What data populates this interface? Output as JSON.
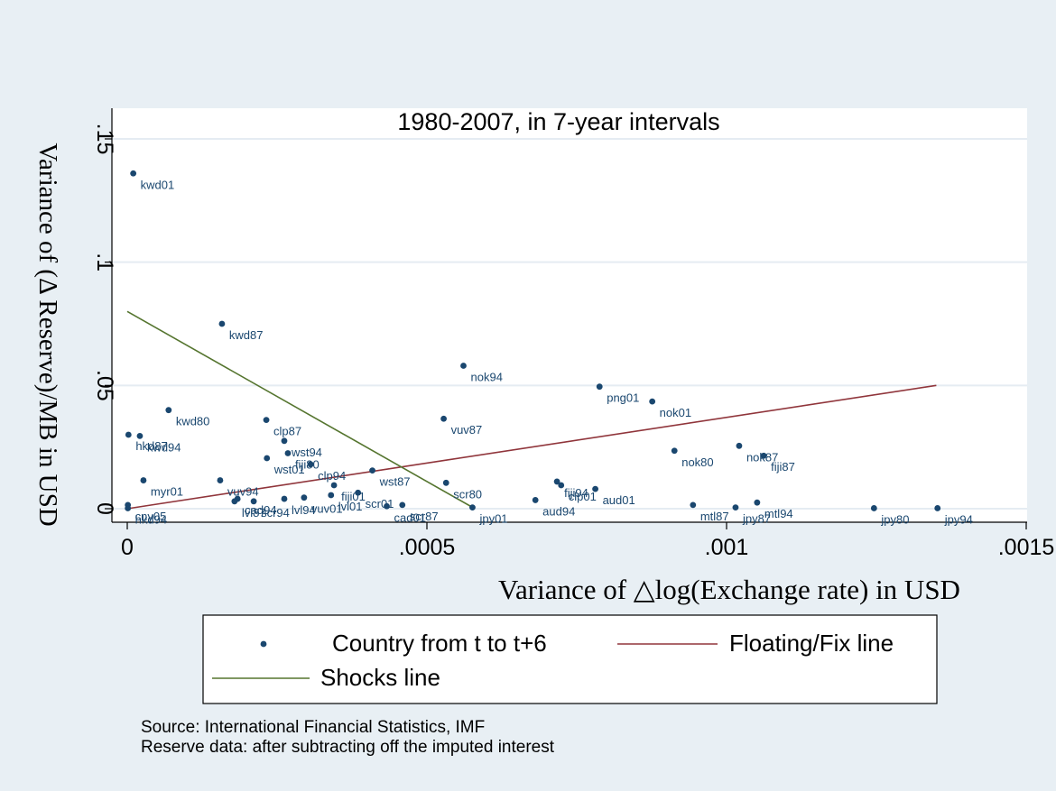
{
  "chart_data": {
    "type": "scatter",
    "title": "1980-2007, in 7-year intervals",
    "xlabel": "Variance of △log(Exchange rate) in USD",
    "ylabel": "Variance of (Δ Reserve)/MB in USD",
    "xlim": [
      0,
      0.0015
    ],
    "ylim": [
      0,
      0.15
    ],
    "xticks": [
      {
        "value": 0,
        "label": "0"
      },
      {
        "value": 0.0005,
        "label": ".0005"
      },
      {
        "value": 0.001,
        "label": ".001"
      },
      {
        "value": 0.0015,
        "label": ".0015"
      }
    ],
    "yticks": [
      {
        "value": 0,
        "label": "0"
      },
      {
        "value": 0.05,
        "label": ".05"
      },
      {
        "value": 0.1,
        "label": ".1"
      },
      {
        "value": 0.15,
        "label": ".15"
      }
    ],
    "grid": true,
    "legend_position": "bottom",
    "colors": {
      "background": "#e8eff4",
      "plot": "#ffffff",
      "grid": "#e5ecf2",
      "points": "#1a476f",
      "floating_fix_line": "#90353b",
      "shocks_line": "#55752f"
    },
    "series": [
      {
        "name": "Country from t to t+6",
        "kind": "points",
        "points": [
          {
            "x": 1e-05,
            "y": 0.136,
            "label": "kwd01"
          },
          {
            "x": 0.000158,
            "y": 0.075,
            "label": "kwd87"
          },
          {
            "x": 0.000561,
            "y": 0.058,
            "label": "nok94"
          },
          {
            "x": 0.000788,
            "y": 0.0495,
            "label": "png01"
          },
          {
            "x": 0.000876,
            "y": 0.0435,
            "label": "nok01"
          },
          {
            "x": 6.9e-05,
            "y": 0.04,
            "label": "kwd80"
          },
          {
            "x": 0.000528,
            "y": 0.0365,
            "label": "vuv87"
          },
          {
            "x": 0.000232,
            "y": 0.036,
            "label": "clp87"
          },
          {
            "x": 2e-06,
            "y": 0.03,
            "label": "hkd87"
          },
          {
            "x": 2.1e-05,
            "y": 0.0295,
            "label": "kwd94"
          },
          {
            "x": 0.000262,
            "y": 0.0275,
            "label": "wst94"
          },
          {
            "x": 0.001021,
            "y": 0.0255,
            "label": "nok87"
          },
          {
            "x": 0.000913,
            "y": 0.0235,
            "label": "nok80"
          },
          {
            "x": 0.000268,
            "y": 0.0225,
            "label": "fiji80"
          },
          {
            "x": 0.001062,
            "y": 0.0215,
            "label": "fiji87"
          },
          {
            "x": 0.000233,
            "y": 0.0205,
            "label": "wst01"
          },
          {
            "x": 0.000306,
            "y": 0.018,
            "label": "clp94"
          },
          {
            "x": 0.000409,
            "y": 0.0155,
            "label": "wst87"
          },
          {
            "x": 2.7e-05,
            "y": 0.0115,
            "label": "myr01"
          },
          {
            "x": 0.000155,
            "y": 0.0115,
            "label": "vuv94"
          },
          {
            "x": 0.000717,
            "y": 0.011,
            "label": "fiji94"
          },
          {
            "x": 0.000532,
            "y": 0.0105,
            "label": "scr80"
          },
          {
            "x": 0.000345,
            "y": 0.0095,
            "label": "fiji01"
          },
          {
            "x": 0.000724,
            "y": 0.0095,
            "label": "clp01"
          },
          {
            "x": 0.000781,
            "y": 0.008,
            "label": "aud01"
          },
          {
            "x": 0.000385,
            "y": 0.0065,
            "label": "scr01"
          },
          {
            "x": 0.00034,
            "y": 0.0055,
            "label": "lvl01"
          },
          {
            "x": 0.000184,
            "y": 0.004,
            "label": "cad94"
          },
          {
            "x": 0.000295,
            "y": 0.0045,
            "label": "vuv01"
          },
          {
            "x": 0.000262,
            "y": 0.004,
            "label": "lvl94"
          },
          {
            "x": 0.000179,
            "y": 0.003,
            "label": "lvl87"
          },
          {
            "x": 0.000211,
            "y": 0.003,
            "label": "scr94"
          },
          {
            "x": 0.000681,
            "y": 0.0035,
            "label": "aud94"
          },
          {
            "x": 0.000459,
            "y": 0.0015,
            "label": "scr87"
          },
          {
            "x": 0.000433,
            "y": 0.001,
            "label": "cad01"
          },
          {
            "x": 1e-06,
            "y": 0.0015,
            "label": "cny05"
          },
          {
            "x": 0.001051,
            "y": 0.0025,
            "label": "mtl94"
          },
          {
            "x": 0.000944,
            "y": 0.0015,
            "label": "mtl87"
          },
          {
            "x": 0.000576,
            "y": 0.0005,
            "label": "jpy01"
          },
          {
            "x": 0.001015,
            "y": 0.0005,
            "label": "jpy87"
          },
          {
            "x": 0.001246,
            "y": 0.0002,
            "label": "jpy80"
          },
          {
            "x": 0.001352,
            "y": 0.0002,
            "label": "jpy94"
          },
          {
            "x": 1e-06,
            "y": 0.0002,
            "label": "hkd94"
          }
        ]
      },
      {
        "name": "Floating/Fix line",
        "kind": "line",
        "x": [
          0,
          0.00135
        ],
        "y": [
          0,
          0.05
        ]
      },
      {
        "name": "Shocks line",
        "kind": "line",
        "x": [
          0,
          0.00058
        ],
        "y": [
          0.08,
          0
        ]
      }
    ]
  },
  "notes": [
    "Source: International Financial Statistics, IMF",
    "Reserve data: after subtracting off the imputed interest"
  ]
}
